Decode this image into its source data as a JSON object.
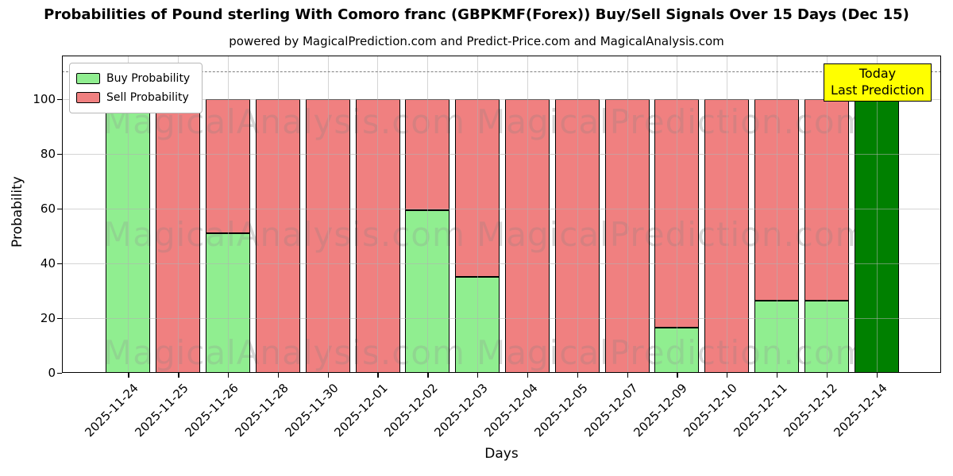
{
  "title": "Probabilities of Pound sterling With Comoro franc (GBPKMF(Forex)) Buy/Sell Signals Over 15 Days (Dec 15)",
  "subtitle": "powered by MagicalPrediction.com and Predict-Price.com and MagicalAnalysis.com",
  "legend": {
    "items": [
      {
        "label": "Buy Probability",
        "color": "#90EE90"
      },
      {
        "label": "Sell Probability",
        "color": "#F08080"
      }
    ]
  },
  "annotation_box": {
    "line1": "Today",
    "line2": "Last Prediction",
    "bg_color": "#FFFF00"
  },
  "watermarks": {
    "left_text": "MagicalAnalysis.com",
    "right_text": "MagicalPrediction.com"
  },
  "axes": {
    "xlabel": "Days",
    "ylabel": "Probability",
    "yticks": [
      0,
      20,
      40,
      60,
      80,
      100
    ],
    "ylim": [
      0,
      116
    ],
    "dashed_line_y": 110,
    "grid": true
  },
  "chart_data": {
    "type": "bar",
    "stacked": true,
    "categories": [
      "2025-11-24",
      "2025-11-25",
      "2025-11-26",
      "2025-11-28",
      "2025-11-30",
      "2025-12-01",
      "2025-12-02",
      "2025-12-03",
      "2025-12-04",
      "2025-12-05",
      "2025-12-07",
      "2025-12-09",
      "2025-12-10",
      "2025-12-11",
      "2025-12-12",
      "2025-12-14"
    ],
    "series": [
      {
        "name": "Buy Probability",
        "color": "#90EE90",
        "values": [
          100,
          0,
          51,
          0,
          0,
          0,
          59.5,
          35,
          0,
          0,
          0,
          16.5,
          0,
          26.5,
          26.5,
          0
        ]
      },
      {
        "name": "Sell Probability",
        "color": "#F08080",
        "values": [
          0,
          100,
          49,
          100,
          100,
          100,
          40.5,
          65,
          100,
          100,
          100,
          83.5,
          100,
          73.5,
          73.5,
          0
        ]
      }
    ],
    "today_bar": {
      "index": 15,
      "value": 100,
      "color": "#008000",
      "label": "2025-12-14"
    }
  },
  "colors": {
    "buy": "#90EE90",
    "sell": "#F08080",
    "today": "#008000",
    "grid": "#b0b0b0",
    "dashed": "#7f7f7f",
    "annotation_bg": "#FFFF00"
  }
}
